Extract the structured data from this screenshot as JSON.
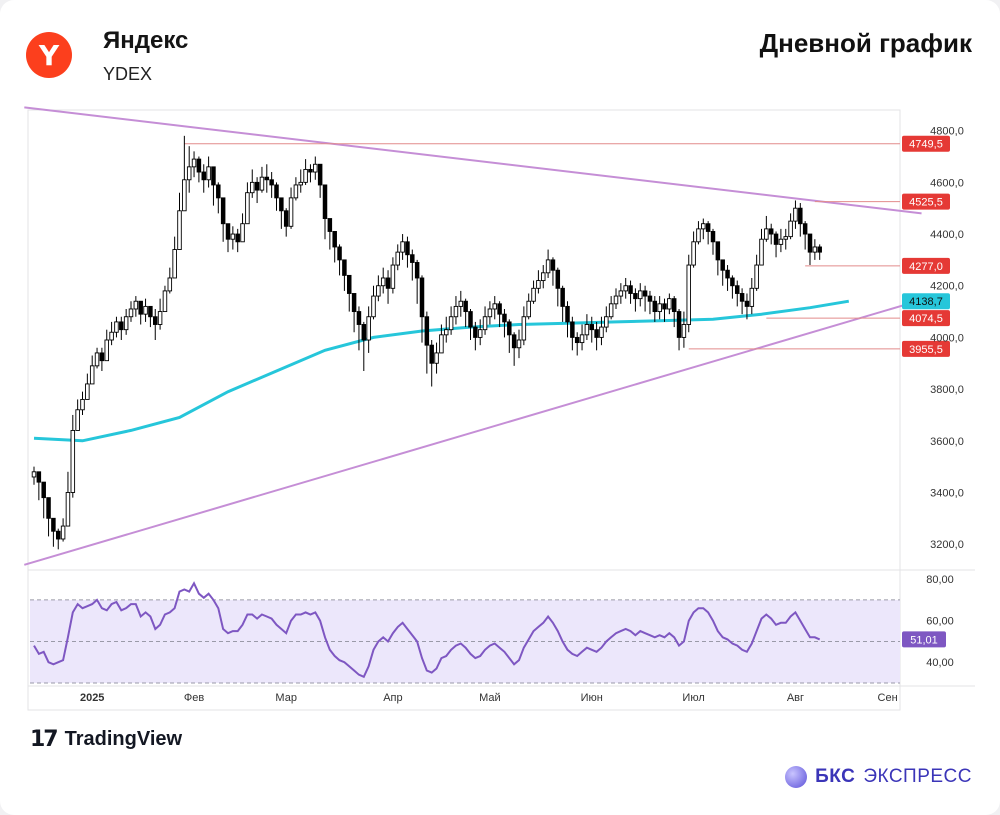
{
  "header": {
    "company_name": "Яндекс",
    "ticker": "YDEX",
    "chart_title": "Дневной график",
    "logo_letter": "Y"
  },
  "footer": {
    "tradingview_mark": "17",
    "tradingview_label": "TradingView",
    "bks_label": "БКС",
    "bks_label2": "ЭКСПРЕСС"
  },
  "colors": {
    "up": "#000000",
    "down": "#000000",
    "ma": "#26c6da",
    "trendline": "#c58ed6",
    "level": "#e28b8b",
    "level_tag": "#e53935",
    "rsi_line": "#7e57c2",
    "rsi_band": "#ece7fb"
  },
  "chart_data": [
    {
      "type": "candlestick",
      "x_axis": {
        "labels": [
          "2025",
          "Фев",
          "Мар",
          "Апр",
          "Май",
          "Июн",
          "Июл",
          "Авг",
          "Сен"
        ],
        "label_bar_index": [
          12,
          33,
          52,
          74,
          94,
          115,
          136,
          157,
          176
        ]
      },
      "y_axis": {
        "range": [
          3100,
          4880
        ],
        "ticks": [
          3200,
          3400,
          3600,
          3800,
          4000,
          4200,
          4400,
          4600,
          4800
        ],
        "tick_labels": [
          "3200,0",
          "3400,0",
          "3600,0",
          "3800,0",
          "4000,0",
          "4200,0",
          "4400,0",
          "4600,0",
          "4800,0"
        ]
      },
      "close": [
        3480,
        3440,
        3380,
        3300,
        3250,
        3220,
        3270,
        3400,
        3640,
        3720,
        3760,
        3820,
        3890,
        3940,
        3910,
        3990,
        4020,
        4060,
        4030,
        4080,
        4110,
        4140,
        4090,
        4120,
        4080,
        4050,
        4100,
        4180,
        4230,
        4340,
        4490,
        4610,
        4660,
        4690,
        4640,
        4610,
        4660,
        4590,
        4540,
        4440,
        4380,
        4400,
        4370,
        4440,
        4560,
        4600,
        4570,
        4620,
        4610,
        4590,
        4540,
        4490,
        4430,
        4540,
        4590,
        4600,
        4650,
        4640,
        4670,
        4590,
        4460,
        4410,
        4350,
        4300,
        4240,
        4170,
        4100,
        4050,
        3990,
        4080,
        4160,
        4200,
        4230,
        4190,
        4280,
        4330,
        4370,
        4320,
        4290,
        4230,
        4080,
        3970,
        3900,
        3940,
        4010,
        4030,
        4080,
        4120,
        4140,
        4100,
        4040,
        4000,
        4030,
        4080,
        4110,
        4130,
        4090,
        4060,
        4010,
        3960,
        3990,
        4080,
        4140,
        4190,
        4220,
        4250,
        4300,
        4260,
        4190,
        4120,
        4060,
        4000,
        3980,
        4010,
        4050,
        4030,
        4000,
        4040,
        4080,
        4130,
        4160,
        4180,
        4200,
        4170,
        4150,
        4180,
        4160,
        4140,
        4100,
        4130,
        4110,
        4150,
        4100,
        4000,
        4050,
        4280,
        4370,
        4420,
        4440,
        4410,
        4370,
        4300,
        4260,
        4230,
        4200,
        4170,
        4140,
        4120,
        4190,
        4280,
        4380,
        4420,
        4400,
        4360,
        4380,
        4390,
        4450,
        4500,
        4440,
        4400,
        4330,
        4350,
        4330
      ],
      "high": [
        3500,
        3480,
        3420,
        3340,
        3280,
        3260,
        3300,
        3480,
        3700,
        3760,
        3790,
        3860,
        3930,
        3960,
        3960,
        4030,
        4060,
        4080,
        4080,
        4110,
        4140,
        4160,
        4140,
        4150,
        4120,
        4110,
        4150,
        4200,
        4270,
        4390,
        4560,
        4780,
        4740,
        4720,
        4700,
        4670,
        4700,
        4660,
        4600,
        4500,
        4440,
        4430,
        4420,
        4480,
        4600,
        4650,
        4620,
        4660,
        4670,
        4640,
        4600,
        4540,
        4500,
        4580,
        4620,
        4650,
        4690,
        4670,
        4700,
        4660,
        4530,
        4460,
        4410,
        4360,
        4300,
        4230,
        4160,
        4120,
        4060,
        4120,
        4200,
        4240,
        4270,
        4260,
        4310,
        4360,
        4400,
        4390,
        4340,
        4300,
        4240,
        4100,
        3990,
        3980,
        4050,
        4080,
        4120,
        4160,
        4180,
        4150,
        4110,
        4060,
        4070,
        4120,
        4140,
        4160,
        4140,
        4110,
        4070,
        4020,
        4030,
        4120,
        4170,
        4220,
        4260,
        4280,
        4340,
        4310,
        4270,
        4200,
        4140,
        4080,
        4020,
        4050,
        4090,
        4080,
        4060,
        4080,
        4120,
        4160,
        4190,
        4210,
        4230,
        4220,
        4190,
        4210,
        4200,
        4180,
        4160,
        4160,
        4150,
        4170,
        4160,
        4110,
        4100,
        4320,
        4410,
        4450,
        4460,
        4450,
        4420,
        4350,
        4300,
        4280,
        4240,
        4220,
        4190,
        4170,
        4230,
        4320,
        4420,
        4470,
        4440,
        4410,
        4420,
        4420,
        4480,
        4530,
        4520,
        4450,
        4400,
        4380,
        4360
      ],
      "low": [
        3430,
        3370,
        3300,
        3230,
        3190,
        3180,
        3210,
        3280,
        3380,
        3640,
        3700,
        3760,
        3830,
        3880,
        3870,
        3930,
        3970,
        4000,
        3990,
        4010,
        4060,
        4080,
        4050,
        4060,
        4040,
        3990,
        4030,
        4120,
        4170,
        4280,
        4380,
        4560,
        4560,
        4620,
        4600,
        4560,
        4580,
        4510,
        4480,
        4370,
        4330,
        4340,
        4330,
        4370,
        4480,
        4540,
        4520,
        4560,
        4560,
        4540,
        4490,
        4420,
        4390,
        4420,
        4530,
        4560,
        4590,
        4600,
        4610,
        4540,
        4380,
        4340,
        4290,
        4240,
        4180,
        4100,
        4020,
        3950,
        3870,
        3940,
        4070,
        4140,
        4170,
        4130,
        4170,
        4260,
        4300,
        4270,
        4220,
        4130,
        3980,
        3860,
        3810,
        3860,
        3940,
        3980,
        4010,
        4050,
        4080,
        4040,
        3990,
        3950,
        3970,
        4010,
        4050,
        4070,
        4040,
        4000,
        3940,
        3890,
        3920,
        3970,
        4070,
        4130,
        4170,
        4190,
        4230,
        4200,
        4120,
        4060,
        4000,
        3950,
        3930,
        3950,
        3990,
        3980,
        3950,
        3970,
        4020,
        4070,
        4110,
        4130,
        4150,
        4130,
        4100,
        4120,
        4100,
        4090,
        4060,
        4070,
        4060,
        4090,
        4040,
        3950,
        3960,
        4020,
        4270,
        4360,
        4380,
        4360,
        4320,
        4240,
        4200,
        4180,
        4150,
        4120,
        4090,
        4070,
        4090,
        4180,
        4290,
        4370,
        4360,
        4310,
        4330,
        4340,
        4380,
        4420,
        4390,
        4340,
        4280,
        4300,
        4300
      ],
      "ma_line": {
        "x": [
          0,
          10,
          20,
          30,
          40,
          50,
          60,
          70,
          80,
          90,
          100,
          110,
          120,
          130,
          140,
          150,
          160,
          168
        ],
        "y": [
          3610,
          3600,
          3640,
          3690,
          3790,
          3870,
          3950,
          4000,
          4025,
          4040,
          4050,
          4055,
          4060,
          4065,
          4070,
          4090,
          4115,
          4140
        ]
      },
      "trendlines": [
        {
          "from": [
            -2,
            4890
          ],
          "to": [
            183,
            4480
          ]
        },
        {
          "from": [
            -2,
            3120
          ],
          "to": [
            183,
            4145
          ]
        }
      ],
      "levels": [
        {
          "value": 4749.5,
          "label": "4749,5",
          "start_bar": 31
        },
        {
          "value": 4525.5,
          "label": "4525,5",
          "start_bar": 161
        },
        {
          "value": 4277.0,
          "label": "4277,0",
          "start_bar": 159
        },
        {
          "value": 4074.5,
          "label": "4074,5",
          "start_bar": 151
        },
        {
          "value": 3955.5,
          "label": "3955,5",
          "start_bar": 135
        }
      ],
      "ma_value_label": "4138,7"
    },
    {
      "type": "line",
      "name": "RSI",
      "y_axis": {
        "range": [
          30,
          82
        ],
        "ticks": [
          40,
          60,
          80
        ],
        "tick_labels": [
          "40,00",
          "60,00",
          "80,00"
        ],
        "band": [
          30,
          70
        ],
        "midline": 50
      },
      "values": [
        48,
        44,
        45,
        40,
        39,
        40,
        41,
        52,
        64,
        68,
        66,
        67,
        68,
        70,
        66,
        65,
        68,
        69,
        65,
        66,
        68,
        68,
        62,
        64,
        62,
        56,
        58,
        63,
        64,
        66,
        74,
        75,
        74,
        78,
        73,
        71,
        73,
        70,
        66,
        56,
        54,
        55,
        55,
        58,
        63,
        63,
        61,
        63,
        62,
        61,
        58,
        56,
        54,
        60,
        63,
        63,
        64,
        63,
        64,
        60,
        52,
        46,
        43,
        41,
        40,
        38,
        36,
        34,
        33,
        38,
        46,
        50,
        52,
        50,
        54,
        57,
        59,
        56,
        53,
        50,
        42,
        36,
        35,
        37,
        42,
        43,
        46,
        48,
        49,
        47,
        44,
        42,
        43,
        46,
        48,
        49,
        47,
        45,
        42,
        39,
        41,
        47,
        51,
        55,
        57,
        59,
        62,
        59,
        55,
        50,
        46,
        44,
        43,
        45,
        47,
        46,
        45,
        47,
        50,
        52,
        54,
        55,
        56,
        55,
        53,
        55,
        54,
        53,
        52,
        53,
        52,
        54,
        52,
        48,
        50,
        60,
        64,
        66,
        66,
        64,
        60,
        55,
        52,
        51,
        49,
        48,
        46,
        45,
        49,
        55,
        61,
        63,
        61,
        58,
        59,
        59,
        62,
        64,
        60,
        56,
        52,
        52,
        51
      ],
      "value_label": "51,01"
    }
  ]
}
